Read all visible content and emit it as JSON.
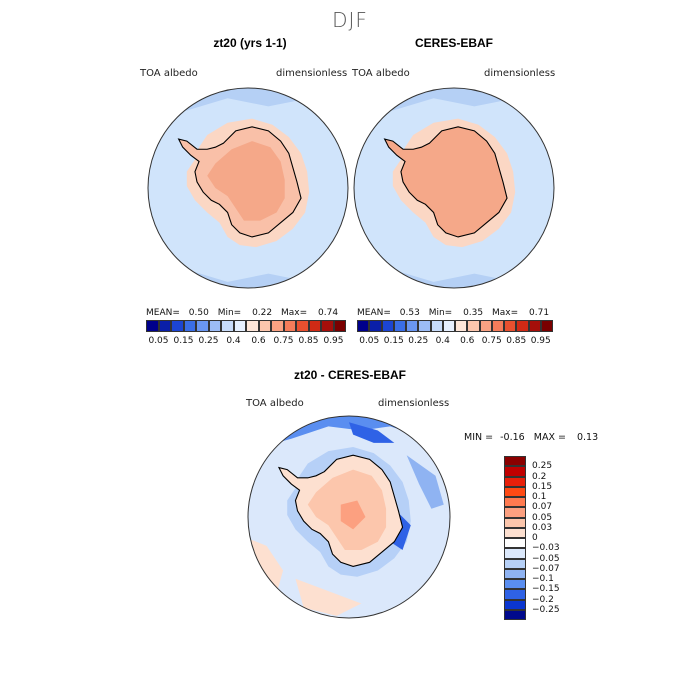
{
  "season": "DJF",
  "panels": [
    {
      "id": "model",
      "title": "zt20 (yrs 1-1)",
      "left_label": "TOA albedo",
      "right_label": "dimensionless",
      "stats": {
        "mean_label": "MEAN=",
        "mean": "0.50",
        "min_label": "Min=",
        "min": "0.22",
        "max_label": "Max=",
        "max": "0.74"
      }
    },
    {
      "id": "obs",
      "title": "CERES-EBAF",
      "left_label": "TOA albedo",
      "right_label": "dimensionless",
      "stats": {
        "mean_label": "MEAN=",
        "mean": "0.53",
        "min_label": "Min=",
        "min": "0.35",
        "max_label": "Max=",
        "max": "0.71"
      }
    }
  ],
  "abs_colorbar": {
    "colors": [
      "#00008b",
      "#0a1fa8",
      "#1c45d2",
      "#3a6ee6",
      "#6a96f0",
      "#9cbcf6",
      "#c8dcfa",
      "#e6f0ff",
      "#fde6d9",
      "#fcc6ad",
      "#f9a283",
      "#f47c5a",
      "#e8502f",
      "#cf2a15",
      "#a50f0a",
      "#7a0000"
    ],
    "labels": [
      "0.05",
      "0.15",
      "0.25",
      "0.4",
      "0.6",
      "0.75",
      "0.85",
      "0.95"
    ]
  },
  "diff": {
    "title": "zt20 - CERES-EBAF",
    "left_label": "TOA albedo",
    "right_label": "dimensionless",
    "stats": {
      "min_label": "MIN =",
      "min": "-0.16",
      "max_label": "MAX =",
      "max": "0.13"
    },
    "colorbar": {
      "colors": [
        "#8b0000",
        "#c00000",
        "#e8200a",
        "#ff4a14",
        "#ff7a50",
        "#fca080",
        "#fcc6ac",
        "#fde0d0",
        "#ffffff",
        "#dbe8fb",
        "#b6d0f7",
        "#8fb3f2",
        "#5a8ef0",
        "#2f62e6",
        "#0b36d0",
        "#000a8c"
      ],
      "labels": [
        "0.25",
        "0.2",
        "0.15",
        "0.1",
        "0.07",
        "0.05",
        "0.03",
        "0",
        "−0.03",
        "−0.05",
        "−0.07",
        "−0.1",
        "−0.15",
        "−0.2",
        "−0.25"
      ]
    }
  },
  "palette": {
    "ocean": "#d0e4fb",
    "ocean_mid": "#b5d0f5",
    "ocean_deep": "#5a8ef0",
    "land_light": "#fbd7c4",
    "land_mid": "#f5a889",
    "coast": "#000000"
  }
}
